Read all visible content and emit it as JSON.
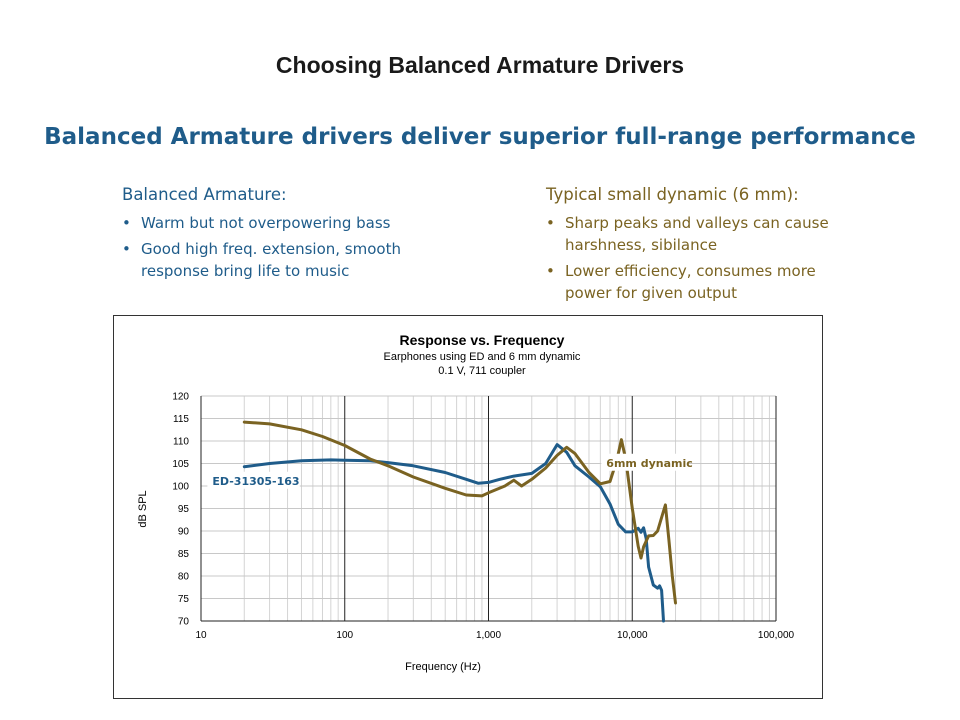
{
  "slide": {
    "title": "Choosing Balanced Armature Drivers",
    "subtitle": "Balanced Armature drivers deliver superior full-range performance"
  },
  "columns": {
    "balanced_armature": {
      "heading": "Balanced Armature:",
      "color": "#1f5c8a",
      "bullets": [
        "Warm but not overpowering bass",
        "Good high freq. extension, smooth response bring life to music"
      ]
    },
    "dynamic": {
      "heading": "Typical small dynamic (6 mm):",
      "color": "#7a6322",
      "bullets": [
        "Sharp peaks and valleys can cause harshness, sibilance",
        "Lower efficiency, consumes more power for given output"
      ]
    }
  },
  "bullet_glyph": "•",
  "chart_data": {
    "type": "line",
    "title": "Response vs. Frequency",
    "subtitle_lines": [
      "Earphones using ED and 6 mm dynamic",
      "0.1 V, 711 coupler"
    ],
    "xlabel": "Frequency (Hz)",
    "ylabel": "dB SPL",
    "xscale": "log",
    "xlim": [
      10,
      100000
    ],
    "ylim": [
      70,
      120
    ],
    "x_ticks": [
      10,
      100,
      1000,
      10000,
      100000
    ],
    "x_tick_labels": [
      "10",
      "100",
      "1,000",
      "10,000",
      "100,000"
    ],
    "y_ticks": [
      70,
      75,
      80,
      85,
      90,
      95,
      100,
      105,
      110,
      115,
      120
    ],
    "y_tick_labels": [
      "70",
      "75",
      "80",
      "85",
      "90",
      "95",
      "100",
      "105",
      "110",
      "115",
      "120"
    ],
    "grid": true,
    "series": [
      {
        "name": "ED-31305-163",
        "label_text": "ED-31305-163",
        "color": "#1f5c8a",
        "points": [
          [
            20,
            104.3
          ],
          [
            30,
            105
          ],
          [
            50,
            105.6
          ],
          [
            80,
            105.8
          ],
          [
            100,
            105.7
          ],
          [
            150,
            105.6
          ],
          [
            200,
            105.2
          ],
          [
            300,
            104.5
          ],
          [
            500,
            103
          ],
          [
            700,
            101.5
          ],
          [
            850,
            100.6
          ],
          [
            1000,
            100.8
          ],
          [
            1200,
            101.5
          ],
          [
            1500,
            102.2
          ],
          [
            2000,
            102.8
          ],
          [
            2500,
            105
          ],
          [
            3000,
            109.2
          ],
          [
            3500,
            107.5
          ],
          [
            4000,
            104.5
          ],
          [
            5000,
            102
          ],
          [
            6000,
            99.8
          ],
          [
            7000,
            96
          ],
          [
            8000,
            91.5
          ],
          [
            9000,
            89.8
          ],
          [
            10000,
            89.8
          ],
          [
            11000,
            90.6
          ],
          [
            11500,
            89.7
          ],
          [
            12000,
            90.7
          ],
          [
            12500,
            88.3
          ],
          [
            13000,
            82
          ],
          [
            14000,
            78
          ],
          [
            15000,
            77.3
          ],
          [
            15500,
            77.8
          ],
          [
            16000,
            76.8
          ],
          [
            16500,
            70
          ]
        ]
      },
      {
        "name": "6mm dynamic",
        "label_text": "6mm dynamic",
        "color": "#7a6322",
        "points": [
          [
            20,
            114.2
          ],
          [
            30,
            113.8
          ],
          [
            50,
            112.5
          ],
          [
            70,
            111
          ],
          [
            100,
            109
          ],
          [
            150,
            106
          ],
          [
            200,
            104.5
          ],
          [
            300,
            102
          ],
          [
            500,
            99.5
          ],
          [
            700,
            98
          ],
          [
            900,
            97.8
          ],
          [
            1000,
            98.5
          ],
          [
            1300,
            100
          ],
          [
            1500,
            101.3
          ],
          [
            1700,
            100
          ],
          [
            2000,
            101.5
          ],
          [
            2500,
            104
          ],
          [
            3000,
            106.8
          ],
          [
            3500,
            108.6
          ],
          [
            4000,
            107.2
          ],
          [
            5000,
            103
          ],
          [
            6000,
            100.5
          ],
          [
            7000,
            101
          ],
          [
            7500,
            104
          ],
          [
            8000,
            107.2
          ],
          [
            8400,
            110.3
          ],
          [
            9000,
            106
          ],
          [
            10000,
            95
          ],
          [
            11000,
            86.6
          ],
          [
            11500,
            84
          ],
          [
            12000,
            86.5
          ],
          [
            13000,
            88.9
          ],
          [
            14000,
            89
          ],
          [
            15000,
            90
          ],
          [
            16000,
            93
          ],
          [
            17000,
            95.8
          ],
          [
            18000,
            88
          ],
          [
            19000,
            80
          ],
          [
            20000,
            74
          ]
        ]
      }
    ]
  }
}
